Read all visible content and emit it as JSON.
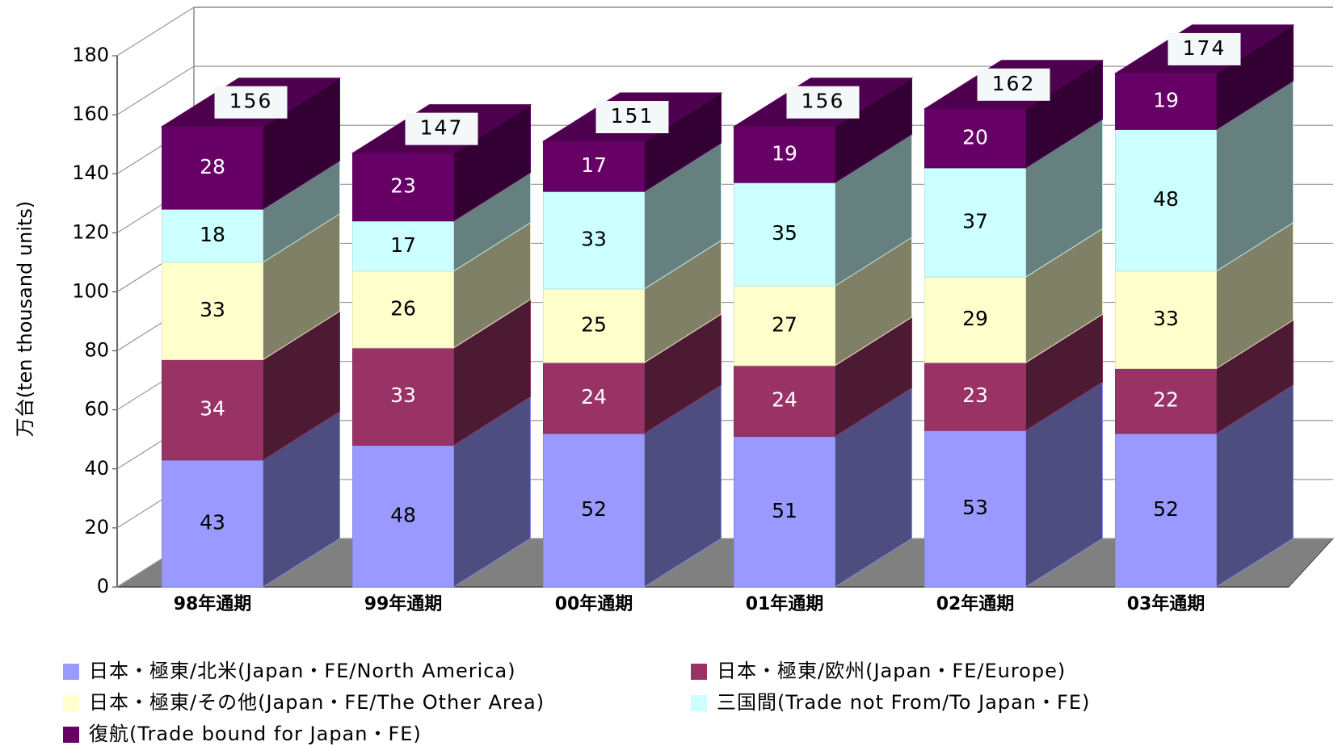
{
  "chart_data": {
    "type": "bar3d_stacked",
    "ylabel": "万台(ten thousand units)",
    "categories": [
      "98年通期",
      "99年通期",
      "00年通期",
      "01年通期",
      "02年通期",
      "03年通期"
    ],
    "series": [
      {
        "name": "日本・極東/北米(Japan・FE/North America)",
        "color": "#9999ff",
        "values": [
          43,
          48,
          52,
          51,
          53,
          52
        ]
      },
      {
        "name": "日本・極東/欧州(Japan・FE/Europe)",
        "color": "#993366",
        "values": [
          34,
          33,
          24,
          24,
          23,
          22
        ]
      },
      {
        "name": "日本・極東/その他(Japan・FE/The Other Area)",
        "color": "#ffffcc",
        "values": [
          33,
          26,
          25,
          27,
          29,
          33
        ]
      },
      {
        "name": "三国間(Trade not From/To Japan・FE)",
        "color": "#ccffff",
        "values": [
          18,
          17,
          33,
          35,
          37,
          48
        ]
      },
      {
        "name": "復航(Trade bound for Japan・FE)",
        "color": "#660066",
        "values": [
          28,
          23,
          17,
          19,
          20,
          19
        ]
      }
    ],
    "totals": [
      156,
      147,
      151,
      156,
      162,
      174
    ],
    "ylim": [
      0,
      180
    ],
    "yticks": [
      0,
      20,
      40,
      60,
      80,
      100,
      120,
      140,
      160,
      180
    ],
    "grid": true
  }
}
